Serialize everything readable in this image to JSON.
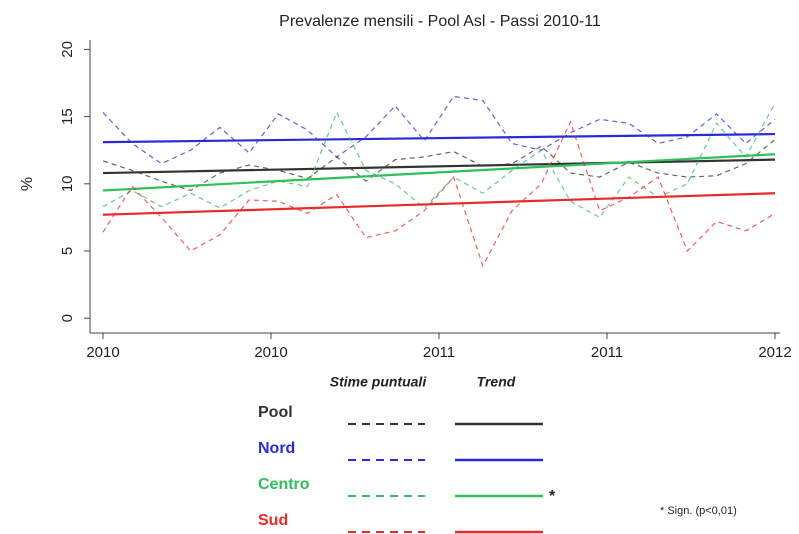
{
  "chart_data": {
    "type": "line",
    "title": "Prevalenze mensili - Pool Asl - Passi 2010-11",
    "y_label": "%",
    "x": [
      0,
      1,
      2,
      3,
      4,
      5,
      6,
      7,
      8,
      9,
      10,
      11,
      12,
      13,
      14,
      15,
      16,
      17,
      18,
      19,
      20,
      21,
      22,
      23
    ],
    "xlim": [
      0,
      23
    ],
    "xticks": [
      {
        "value": 0,
        "label": "2010"
      },
      {
        "value": 5.75,
        "label": "2010"
      },
      {
        "value": 11.5,
        "label": "2011"
      },
      {
        "value": 17.25,
        "label": "2011"
      },
      {
        "value": 23,
        "label": "2012"
      }
    ],
    "ylim": [
      -1.1,
      20.7
    ],
    "yticks": [
      0,
      5,
      10,
      15,
      20
    ],
    "trend_x": [
      0,
      23
    ],
    "legend_headings": [
      "Stime puntuali",
      "Trend"
    ],
    "note": "* Sign. (p<0,01)",
    "series": [
      {
        "name": "Pool",
        "color": "#333333",
        "values": [
          11.7,
          11,
          10.2,
          9.5,
          10.8,
          11.4,
          11,
          10.4,
          12,
          10.2,
          11.8,
          12,
          12.4,
          11.3,
          11.5,
          12.8,
          10.8,
          10.5,
          11.6,
          10.8,
          10.5,
          10.6,
          11.5,
          13.3
        ],
        "trend": [
          10.8,
          11.8
        ]
      },
      {
        "name": "Nord",
        "color": "#2b2bd6",
        "values": [
          15.3,
          13,
          11.5,
          12.5,
          14.2,
          12.3,
          15.2,
          14,
          12,
          13.5,
          15.8,
          13.2,
          16.5,
          16.2,
          13,
          12.5,
          13.8,
          14.8,
          14.5,
          13,
          13.5,
          15.2,
          13,
          14.8
        ],
        "trend": [
          13.1,
          13.7
        ]
      },
      {
        "name": "Centro",
        "color": "#2fc05a",
        "values": [
          8.3,
          9.5,
          8.3,
          9.3,
          8.2,
          9.5,
          10.2,
          9.8,
          15.3,
          11,
          10,
          8.2,
          10.5,
          9.3,
          11,
          12.5,
          8.7,
          7.5,
          10.5,
          9,
          10,
          14.5,
          12,
          16
        ],
        "trend": [
          9.5,
          12.2
        ],
        "mark": "*"
      },
      {
        "name": "Sud",
        "color": "#e82a2a",
        "values": [
          6.4,
          9.8,
          7.5,
          5,
          6.2,
          8.8,
          8.7,
          7.8,
          9.2,
          6,
          6.5,
          8,
          10.5,
          3.9,
          8,
          10,
          14.6,
          8,
          9,
          10.5,
          5,
          7.2,
          6.5,
          7.8
        ],
        "trend": [
          7.7,
          9.3
        ]
      }
    ]
  }
}
